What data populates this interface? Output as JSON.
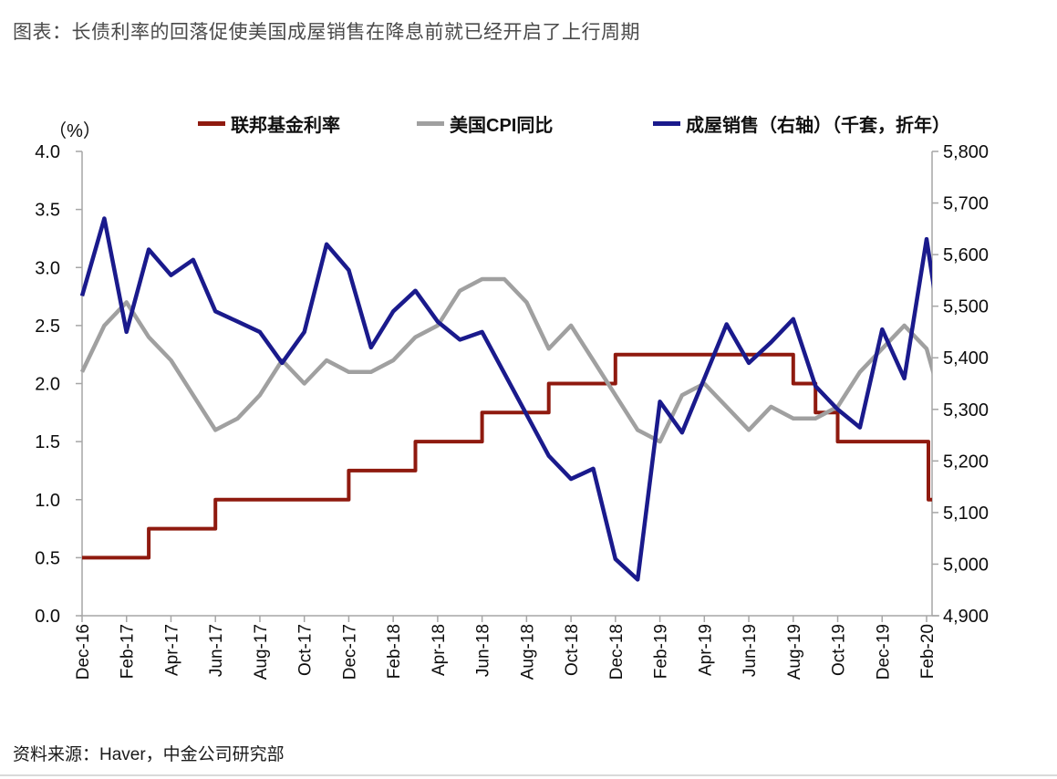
{
  "title": "图表：长债利率的回落促使美国成屋销售在降息前就已经开启了上行周期",
  "source": "资料来源：Haver，中金公司研究部",
  "chart_data": {
    "type": "line",
    "unit_label_left": "（%）",
    "legend": [
      {
        "name": "联邦基金利率",
        "color": "#8f1a0f",
        "axis": "left",
        "style": "step"
      },
      {
        "name": "美国CPI同比",
        "color": "#a0a0a0",
        "axis": "left",
        "style": "line"
      },
      {
        "name": "成屋销售（右轴）（千套，折年）",
        "color": "#1a1a8c",
        "axis": "right",
        "style": "line"
      }
    ],
    "months": [
      "Dec-16",
      "Jan-17",
      "Feb-17",
      "Mar-17",
      "Apr-17",
      "May-17",
      "Jun-17",
      "Jul-17",
      "Aug-17",
      "Sep-17",
      "Oct-17",
      "Nov-17",
      "Dec-17",
      "Jan-18",
      "Feb-18",
      "Mar-18",
      "Apr-18",
      "May-18",
      "Jun-18",
      "Jul-18",
      "Aug-18",
      "Sep-18",
      "Oct-18",
      "Nov-18",
      "Dec-18",
      "Jan-19",
      "Feb-19",
      "Mar-19",
      "Apr-19",
      "May-19",
      "Jun-19",
      "Jul-19",
      "Aug-19",
      "Sep-19",
      "Oct-19",
      "Nov-19",
      "Dec-19",
      "Jan-20",
      "Feb-20",
      "Mar-20"
    ],
    "x_tick_labels": [
      "Dec-16",
      "Feb-17",
      "Apr-17",
      "Jun-17",
      "Aug-17",
      "Oct-17",
      "Dec-17",
      "Feb-18",
      "Apr-18",
      "Jun-18",
      "Aug-18",
      "Oct-18",
      "Dec-18",
      "Feb-19",
      "Apr-19",
      "Jun-19",
      "Aug-19",
      "Oct-19",
      "Dec-19",
      "Feb-20"
    ],
    "series": [
      {
        "name": "联邦基金利率",
        "values": [
          0.5,
          0.5,
          0.5,
          0.75,
          0.75,
          0.75,
          1.0,
          1.0,
          1.0,
          1.0,
          1.0,
          1.0,
          1.25,
          1.25,
          1.25,
          1.5,
          1.5,
          1.5,
          1.75,
          1.75,
          1.75,
          2.0,
          2.0,
          2.0,
          2.25,
          2.25,
          2.25,
          2.25,
          2.25,
          2.25,
          2.25,
          2.25,
          2.0,
          1.75,
          1.5,
          1.5,
          1.5,
          1.5,
          1.5,
          1.0
        ]
      },
      {
        "name": "美国CPI同比",
        "values": [
          2.1,
          2.5,
          2.7,
          2.4,
          2.2,
          1.9,
          1.6,
          1.7,
          1.9,
          2.2,
          2.0,
          2.2,
          2.1,
          2.1,
          2.2,
          2.4,
          2.5,
          2.8,
          2.9,
          2.9,
          2.7,
          2.3,
          2.5,
          2.2,
          1.9,
          1.6,
          1.5,
          1.9,
          2.0,
          1.8,
          1.6,
          1.8,
          1.7,
          1.7,
          1.8,
          2.1,
          2.3,
          2.5,
          2.3,
          2.05
        ]
      },
      {
        "name": "成屋销售（右轴）（千套，折年）",
        "values": [
          5520,
          5670,
          5450,
          5610,
          5560,
          5590,
          5490,
          5470,
          5450,
          5390,
          5450,
          5620,
          5570,
          5420,
          5490,
          5530,
          5470,
          5435,
          5450,
          5370,
          5290,
          5210,
          5165,
          5185,
          5010,
          4970,
          5315,
          5255,
          5360,
          5465,
          5390,
          5430,
          5475,
          5345,
          5300,
          5265,
          5455,
          5360,
          5630,
          5525
        ]
      }
    ],
    "left_ticks": [
      {
        "v": 0.0,
        "label": "0.0"
      },
      {
        "v": 0.5,
        "label": "0.5"
      },
      {
        "v": 1.0,
        "label": "1.0"
      },
      {
        "v": 1.5,
        "label": "1.5"
      },
      {
        "v": 2.0,
        "label": "2.0"
      },
      {
        "v": 2.5,
        "label": "2.5"
      },
      {
        "v": 3.0,
        "label": "3.0"
      },
      {
        "v": 3.5,
        "label": "3.5"
      },
      {
        "v": 4.0,
        "label": "4.0"
      }
    ],
    "right_ticks": [
      {
        "v": 4900,
        "label": "4,900"
      },
      {
        "v": 5000,
        "label": "5,000"
      },
      {
        "v": 5100,
        "label": "5,100"
      },
      {
        "v": 5200,
        "label": "5,200"
      },
      {
        "v": 5300,
        "label": "5,300"
      },
      {
        "v": 5400,
        "label": "5,400"
      },
      {
        "v": 5500,
        "label": "5,500"
      },
      {
        "v": 5600,
        "label": "5,600"
      },
      {
        "v": 5700,
        "label": "5,700"
      },
      {
        "v": 5800,
        "label": "5,800"
      }
    ],
    "ylim_left": [
      0,
      4
    ],
    "ylim_right": [
      4900,
      5800
    ],
    "grid": "off",
    "legend_position": "top"
  }
}
